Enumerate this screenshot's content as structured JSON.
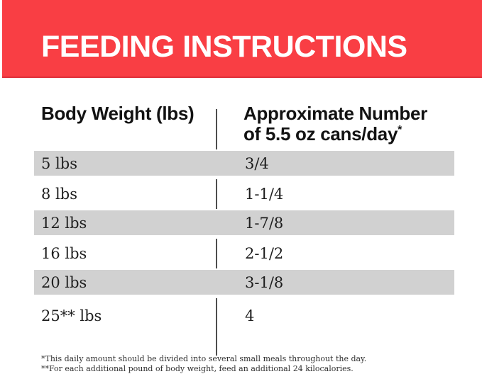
{
  "banner": {
    "title": "FEEDING INSTRUCTIONS",
    "background_color": "#F93E44",
    "text_color": "#FFFFFF"
  },
  "table": {
    "columns": {
      "col1": "Body Weight (lbs)",
      "col2_line1": "Approximate Number",
      "col2_line2": "of 5.5 oz cans/day",
      "col2_footnote_mark": "*"
    },
    "stripe_color": "#d1d1d1",
    "rows": [
      {
        "weight": "5 lbs",
        "cans": "3/4"
      },
      {
        "weight": "8 lbs",
        "cans": "1-1/4"
      },
      {
        "weight": "12 lbs",
        "cans": "1-7/8"
      },
      {
        "weight": "16 lbs",
        "cans": "2-1/2"
      },
      {
        "weight": "20 lbs",
        "cans": "3-1/8"
      },
      {
        "weight": "25** lbs",
        "cans": "4"
      }
    ]
  },
  "footnotes": {
    "line1": "*This daily amount should be divided into several small meals throughout the day.",
    "line2": "**For each additional pound of body weight, feed an additional 24 kilocalories."
  }
}
